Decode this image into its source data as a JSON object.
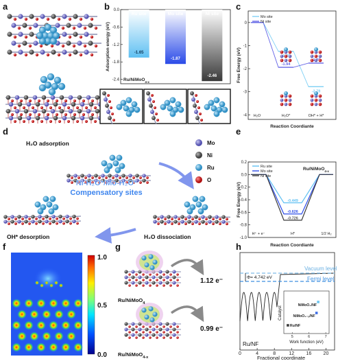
{
  "panel_labels": {
    "a": "a",
    "b": "b",
    "c": "c",
    "d": "d",
    "e": "e",
    "f": "f",
    "g": "g",
    "h": "h"
  },
  "colors": {
    "ru_site": "#5fc0f2",
    "mo_site": "#2b4be8",
    "ni_site": "#3a3a3a",
    "c_mo_line": "#7fd0f5",
    "c_ni_line": "#6464e6",
    "ru_atom": "#49a9d8",
    "mo_atom": "#7a78cc",
    "ni_atom": "#6e6e6e",
    "o_atom": "#d8262a",
    "arrow_blue": "#4e70e6",
    "vacuum_dash": "#7dbbe8",
    "fermi_dash": "#3d8fe0"
  },
  "panel_b": {
    "ylabel": "Adsorption energy (eV)",
    "material": "Ru/NiMoO",
    "material_sub": "4-x",
    "chart_data": {
      "type": "bar",
      "categories": [
        "Ru site",
        "Mo site",
        "Ni site"
      ],
      "values": [
        -1.65,
        -1.87,
        -2.46
      ],
      "value_labels": [
        "-1.65",
        "-1.87",
        "-2.46"
      ],
      "yticks": [
        "0.0",
        "-0.6",
        "-1.2",
        "-1.8",
        "-2.4"
      ],
      "ylim": [
        -2.55,
        0
      ]
    }
  },
  "panel_c": {
    "ylabel": "Free Energy (eV)",
    "xlabel": "Reaction Coordiante",
    "xtick_labels": [
      "H₂O",
      "H₂O*",
      "OH* + H*"
    ],
    "yticks": [
      "0",
      "-1",
      "-2",
      "-3",
      "-4"
    ],
    "legend": [
      "Mo site",
      "Ni site"
    ],
    "chart_data": {
      "type": "line",
      "x": [
        "H2O",
        "H2O*",
        "OH* + H*"
      ],
      "series": [
        {
          "name": "Mo site",
          "values": [
            0,
            -1.25,
            -2.78
          ]
        },
        {
          "name": "Ni site",
          "values": [
            0,
            -1.94,
            -1.76
          ]
        }
      ],
      "value_labels": [
        "-1.25",
        "-1.94",
        "-1.76",
        "-2.78"
      ],
      "ylim": [
        -4.2,
        0.5
      ]
    }
  },
  "panel_d": {
    "h2o_adsorption": "H₂O adsorption",
    "oh_desorption": "OH* desorption",
    "h2o_dissociation": "H₂O dissociation",
    "center_line1": "Ni-H₂O*/Mo-H₂O*",
    "center_line2": "Compensatory sites",
    "legend": [
      "Mo",
      "Ni",
      "Ru",
      "O"
    ]
  },
  "panel_e": {
    "ylabel": "Free Energy (eV)",
    "xlabel": "Reaction Coordiante",
    "material": "Ru/NiMoO",
    "material_sub": "4-x",
    "legend": [
      "Ru site",
      "Mo site",
      "Ni site"
    ],
    "xtick_labels": [
      "H⁺ + e⁻",
      "H*",
      "1/2 H₂"
    ],
    "yticks": [
      "0.2",
      "0.0",
      "-0.2",
      "-0.4",
      "-0.6",
      "-0.8",
      "-1.0"
    ],
    "chart_data": {
      "type": "line",
      "x": [
        "H+ + e-",
        "H*",
        "1/2 H2"
      ],
      "series": [
        {
          "name": "Ru site",
          "values": [
            0,
            -0.449,
            0
          ]
        },
        {
          "name": "Mo site",
          "values": [
            0,
            -0.626,
            0
          ]
        },
        {
          "name": "Ni site",
          "values": [
            0,
            -0.726,
            0
          ]
        }
      ],
      "value_labels": [
        "-0.449",
        "-0.626",
        "-0.726"
      ],
      "ylim": [
        -1.0,
        0.2
      ]
    }
  },
  "panel_f": {
    "colorbar_ticks": [
      "1.0",
      "0.5",
      "0.0"
    ]
  },
  "panel_g": {
    "top_label": "Ru/NiMoO",
    "top_sub": "4",
    "top_value": "1.12 e⁻",
    "bottom_label": "Ru/NiMoO",
    "bottom_sub": "4-x",
    "bottom_value": "0.99 e⁻"
  },
  "panel_h": {
    "phi": "Φ= 4.742 eV",
    "vacuum": "Vacuum level",
    "fermi": "Fermi level",
    "sample": "Ru/NF",
    "xlabel": "Fractional coordinate",
    "xticks": [
      "0",
      "4",
      "8",
      "12",
      "16",
      "20"
    ],
    "inset": {
      "ylabel": "Catalyst",
      "xlabel": "Work function (eV)",
      "xticks": [
        "5",
        "6",
        "7"
      ],
      "points": [
        {
          "label": "NiMoO₄/NF",
          "x": 6.55
        },
        {
          "label": "NiMoO₄₋ₓ/NF",
          "x": 6.45
        },
        {
          "label": "Ru/NF",
          "x": 4.742
        }
      ]
    }
  }
}
